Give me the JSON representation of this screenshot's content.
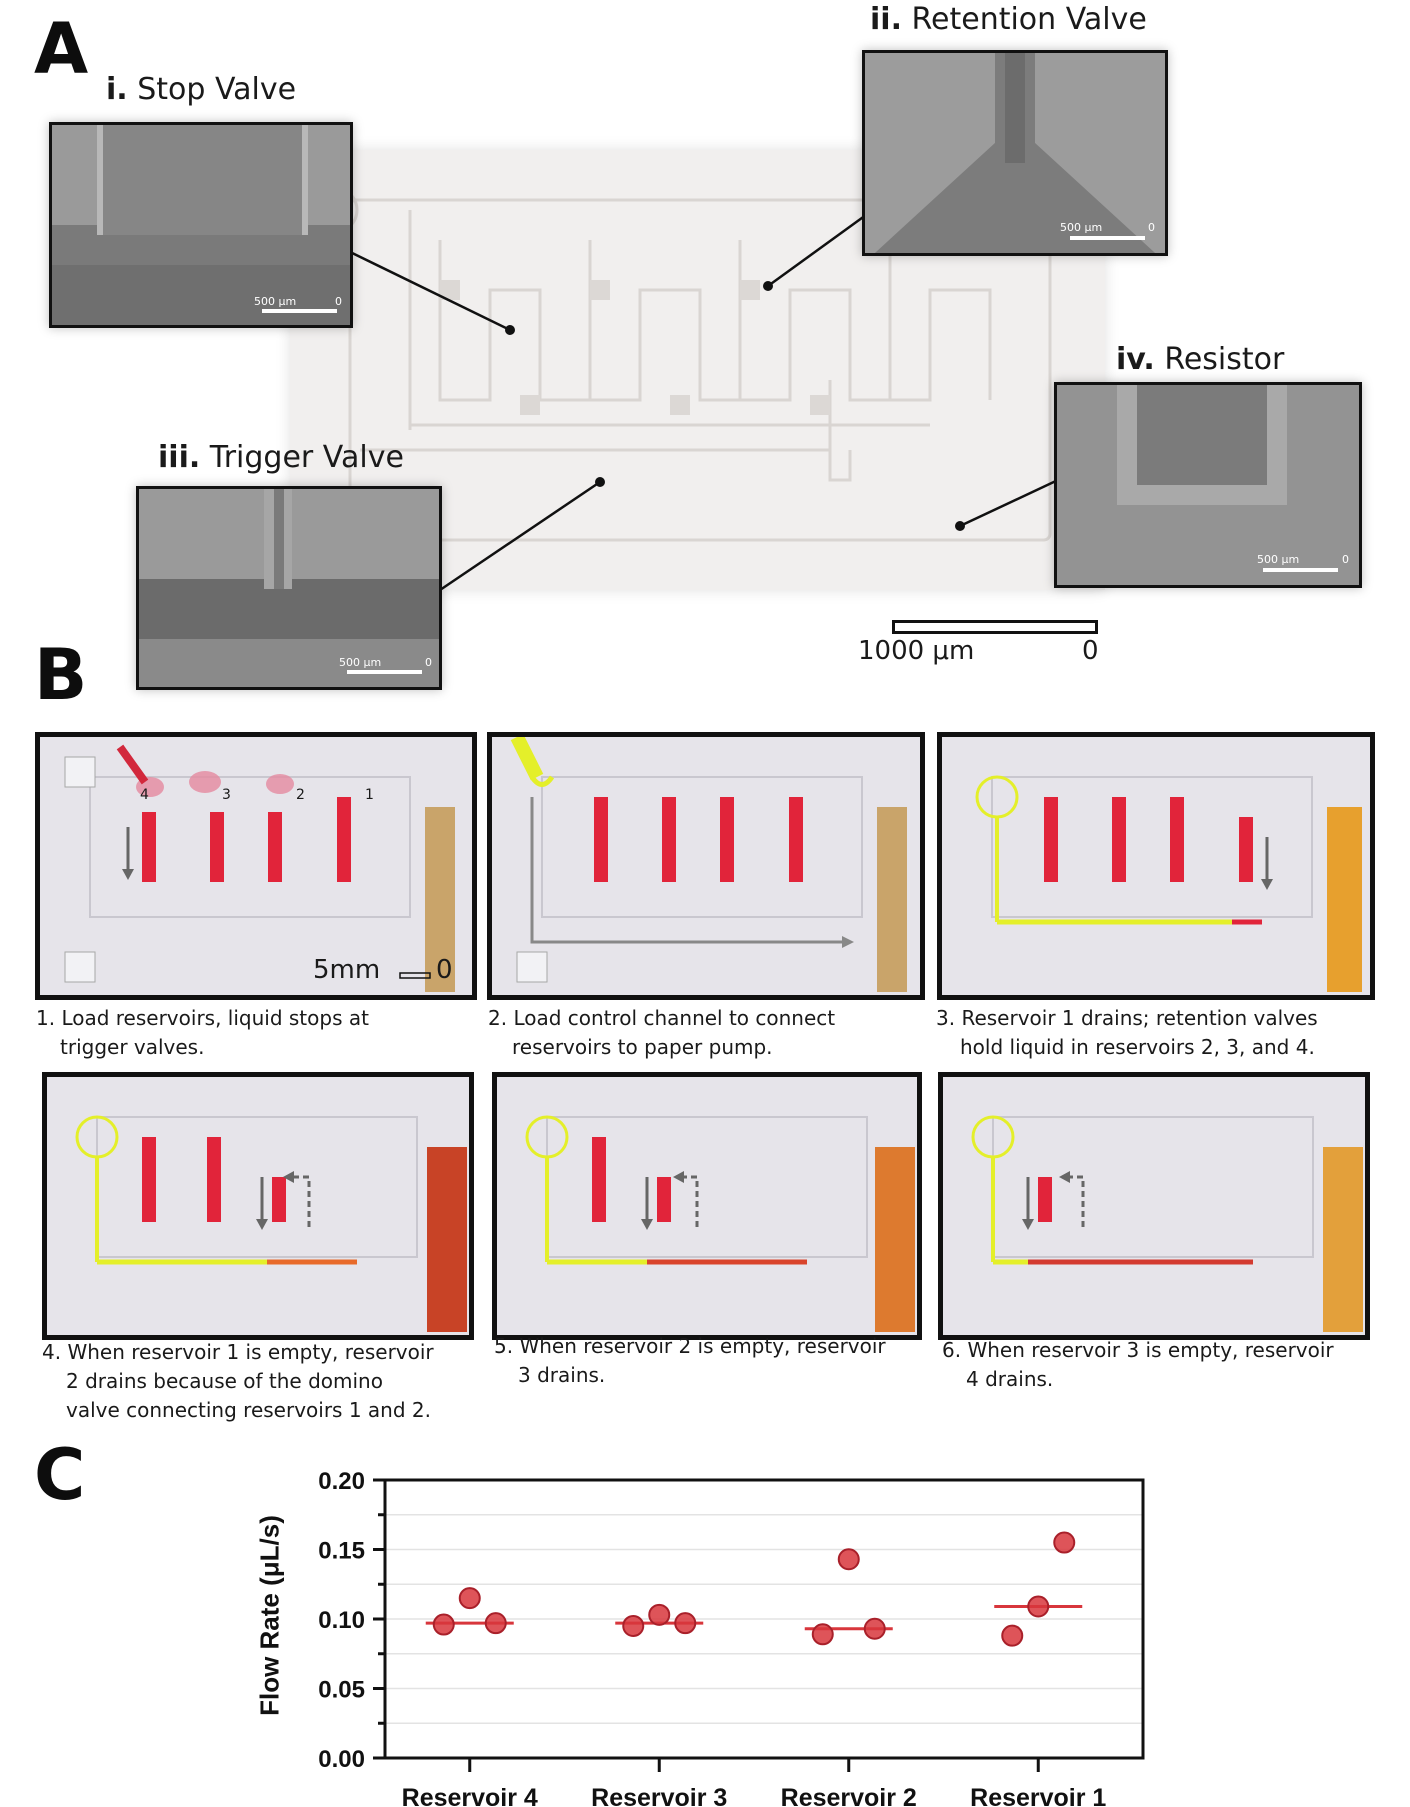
{
  "panels": {
    "a": "A",
    "b": "B",
    "c": "C"
  },
  "panel_a": {
    "insets": [
      {
        "numeral": "i.",
        "name": "Stop Valve",
        "scale_label": "500 μm",
        "scale_zero": "0"
      },
      {
        "numeral": "ii.",
        "name": "Retention Valve",
        "scale_label": "500 μm",
        "scale_zero": "0"
      },
      {
        "numeral": "iii.",
        "name": "Trigger Valve",
        "scale_label": "500 μm",
        "scale_zero": "0"
      },
      {
        "numeral": "iv.",
        "name": "Resistor",
        "scale_label": "500 μm",
        "scale_zero": "0"
      }
    ],
    "scale_bar": {
      "label": "1000 μm",
      "zero": "0"
    }
  },
  "panel_b": {
    "reservoir_numbers": [
      "4",
      "3",
      "2",
      "1"
    ],
    "scale_bar": {
      "label": "5mm",
      "zero": "0"
    },
    "steps": [
      {
        "lines": [
          "1. Load reservoirs, liquid stops at",
          "trigger valves."
        ]
      },
      {
        "lines": [
          "2. Load control channel to connect",
          "reservoirs to paper pump."
        ]
      },
      {
        "lines": [
          "3. Reservoir 1 drains; retention valves",
          "hold liquid in reservoirs 2, 3, and 4."
        ]
      },
      {
        "lines": [
          "4. When reservoir 1 is empty, reservoir",
          "2 drains because of the domino",
          "valve connecting reservoirs 1 and 2."
        ]
      },
      {
        "lines": [
          "5. When reservoir 2 is empty, reservoir",
          "3 drains."
        ]
      },
      {
        "lines": [
          "6. When reservoir 3 is empty, reservoir",
          "4 drains."
        ]
      }
    ],
    "colors": {
      "red": "#e1243a",
      "yellow": "#e4ef2a",
      "paper": "#c9a46a"
    }
  },
  "chart_data": {
    "type": "scatter",
    "title": "",
    "xlabel": "",
    "ylabel": "Flow Rate (μL/s)",
    "categories": [
      "Reservoir 4",
      "Reservoir 3",
      "Reservoir 2",
      "Reservoir 1"
    ],
    "ylim": [
      0,
      0.2
    ],
    "yticks": [
      "0.00",
      "0.05",
      "0.10",
      "0.15",
      "0.20"
    ],
    "grid": true,
    "points": [
      [
        0.096,
        0.115,
        0.097
      ],
      [
        0.095,
        0.103,
        0.097
      ],
      [
        0.089,
        0.143,
        0.093
      ],
      [
        0.088,
        0.109,
        0.155
      ]
    ],
    "medians": [
      0.097,
      0.097,
      0.093,
      0.109
    ],
    "color": "#d8363c"
  }
}
